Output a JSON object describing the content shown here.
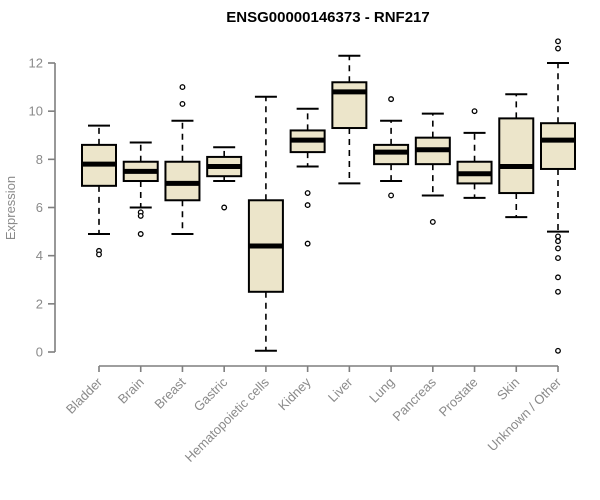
{
  "title": "ENSG00000146373 - RNF217",
  "chart_data": {
    "type": "boxplot",
    "title": "ENSG00000146373 - RNF217",
    "xlabel": "",
    "ylabel": "Expression",
    "ylim": [
      0,
      12
    ],
    "yticks": [
      0,
      2,
      4,
      6,
      8,
      10,
      12
    ],
    "grid": false,
    "legend": false,
    "box_fill_color": "#ece5ca",
    "box_stroke_color": "#000000",
    "median_color": "#000000",
    "axis_color": "#7f7f7f",
    "label_color": "#8a8a8a",
    "background_color": "#ffffff",
    "categories": [
      "Bladder",
      "Brain",
      "Breast",
      "Gastric",
      "Hematopoietic cells",
      "Kidney",
      "Liver",
      "Lung",
      "Pancreas",
      "Prostate",
      "Skin",
      "Unknown / Other"
    ],
    "series": [
      {
        "category": "Bladder",
        "whisker_low": 4.9,
        "q1": 6.9,
        "median": 7.8,
        "q3": 8.6,
        "whisker_high": 9.4,
        "outliers": [
          4.2,
          4.05
        ]
      },
      {
        "category": "Brain",
        "whisker_low": 6.0,
        "q1": 7.1,
        "median": 7.5,
        "q3": 7.9,
        "whisker_high": 8.7,
        "outliers": [
          5.8,
          5.65,
          4.9
        ]
      },
      {
        "category": "Breast",
        "whisker_low": 4.9,
        "q1": 6.3,
        "median": 7.0,
        "q3": 7.9,
        "whisker_high": 9.6,
        "outliers": [
          11.0,
          10.3
        ]
      },
      {
        "category": "Gastric",
        "whisker_low": 7.1,
        "q1": 7.3,
        "median": 7.7,
        "q3": 8.1,
        "whisker_high": 8.5,
        "outliers": [
          6.0
        ]
      },
      {
        "category": "Hematopoietic cells",
        "whisker_low": 0.05,
        "q1": 2.5,
        "median": 4.4,
        "q3": 6.3,
        "whisker_high": 10.6,
        "outliers": []
      },
      {
        "category": "Kidney",
        "whisker_low": 7.7,
        "q1": 8.3,
        "median": 8.8,
        "q3": 9.2,
        "whisker_high": 10.1,
        "outliers": [
          6.6,
          6.1,
          4.5
        ]
      },
      {
        "category": "Liver",
        "whisker_low": 7.0,
        "q1": 9.3,
        "median": 10.8,
        "q3": 11.2,
        "whisker_high": 12.3,
        "outliers": []
      },
      {
        "category": "Lung",
        "whisker_low": 7.1,
        "q1": 7.8,
        "median": 8.3,
        "q3": 8.6,
        "whisker_high": 9.6,
        "outliers": [
          10.5,
          6.5
        ]
      },
      {
        "category": "Pancreas",
        "whisker_low": 6.5,
        "q1": 7.8,
        "median": 8.4,
        "q3": 8.9,
        "whisker_high": 9.9,
        "outliers": [
          5.4
        ]
      },
      {
        "category": "Prostate",
        "whisker_low": 6.4,
        "q1": 7.0,
        "median": 7.4,
        "q3": 7.9,
        "whisker_high": 9.1,
        "outliers": [
          10.0
        ]
      },
      {
        "category": "Skin",
        "whisker_low": 5.6,
        "q1": 6.6,
        "median": 7.7,
        "q3": 9.7,
        "whisker_high": 10.7,
        "outliers": []
      },
      {
        "category": "Unknown / Other",
        "whisker_low": 5.0,
        "q1": 7.6,
        "median": 8.8,
        "q3": 9.5,
        "whisker_high": 12.0,
        "outliers": [
          12.9,
          12.6,
          4.8,
          4.6,
          4.3,
          3.9,
          3.1,
          2.5,
          0.05
        ]
      }
    ]
  }
}
